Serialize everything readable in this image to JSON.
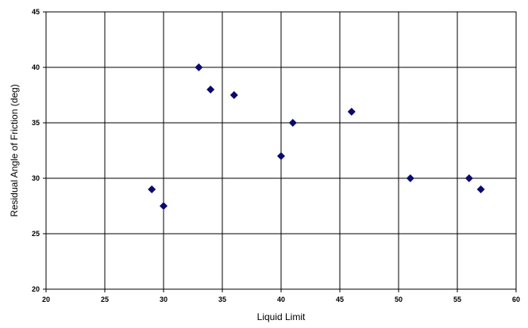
{
  "chart_data": {
    "type": "scatter",
    "title": "",
    "xlabel": "Liquid Limit",
    "ylabel": "Residual Angle of Friction (deg)",
    "xlim": [
      20,
      60
    ],
    "ylim": [
      20,
      45
    ],
    "xticks": [
      20,
      25,
      30,
      35,
      40,
      45,
      50,
      55,
      60
    ],
    "yticks": [
      20,
      25,
      30,
      35,
      40,
      45
    ],
    "grid": true,
    "legend": "none",
    "marker": "diamond",
    "marker_color": "#0a0a6e",
    "points": [
      {
        "x": 29,
        "y": 29
      },
      {
        "x": 30,
        "y": 27.5
      },
      {
        "x": 33,
        "y": 40
      },
      {
        "x": 34,
        "y": 38
      },
      {
        "x": 36,
        "y": 37.5
      },
      {
        "x": 40,
        "y": 32
      },
      {
        "x": 41,
        "y": 35
      },
      {
        "x": 46,
        "y": 36
      },
      {
        "x": 51,
        "y": 30
      },
      {
        "x": 56,
        "y": 30
      },
      {
        "x": 57,
        "y": 29
      }
    ]
  }
}
